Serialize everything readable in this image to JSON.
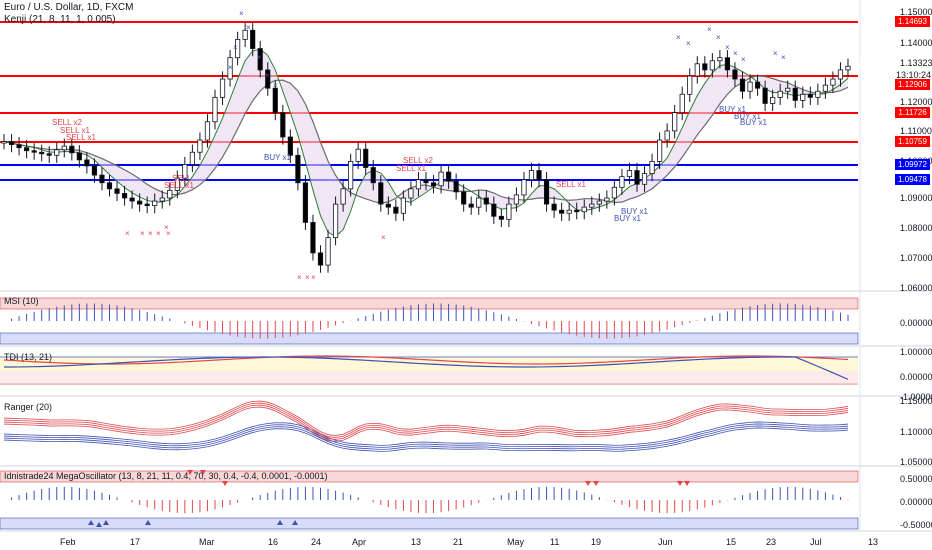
{
  "header": {
    "symbol_title": "Euro / U.S. Dollar, 1D, FXCM",
    "indicator": "Kenji (21, 8, 11, 1, 0.005)"
  },
  "price_axis": {
    "ticks": [
      "1.15000",
      "1.14000",
      "1.13323",
      "1.12000",
      "1.11000",
      "1.10000",
      "1.09000",
      "1.08000",
      "1.07000",
      "1.06000"
    ],
    "current_price": "1.13323",
    "countdown": "13:10:24"
  },
  "levels": [
    {
      "value": "1.14693",
      "color": "#ff0000"
    },
    {
      "value": "1.12906",
      "color": "#ff0000"
    },
    {
      "value": "1.11726",
      "color": "#ff0000"
    },
    {
      "value": "1.10759",
      "color": "#ff0000"
    },
    {
      "value": "1.09972",
      "color": "#0000ff"
    },
    {
      "value": "1.09478",
      "color": "#0000ff"
    }
  ],
  "signals": [
    "SELL x2",
    "SELL x1",
    "SELL x1",
    "SELL",
    "SELL x1",
    "BUY x1",
    "SELL x2",
    "SELL x1",
    "SELL x1",
    "BUY x1",
    "BUY x1",
    "BUY x1",
    "BUY x1",
    "BUY x1"
  ],
  "panes": {
    "msi": {
      "title": "MSI (10)",
      "ticks": [
        "0.00000"
      ]
    },
    "tdi": {
      "title": "TDI (13, 21)",
      "ticks": [
        "1.00000",
        "0.00000",
        "-1.00000"
      ]
    },
    "ranger": {
      "title": "Ranger (20)",
      "ticks": [
        "1.15000",
        "1.10000",
        "1.05000"
      ]
    },
    "mega": {
      "title": "Idnistrade24 MegaOscillator (13, 8, 21, 11, 0.4, 70, 30, 0.4, -0.4, 0.0001, -0.0001)",
      "ticks": [
        "0.50000",
        "0.00000",
        "-0.50000"
      ]
    }
  },
  "time_axis": [
    "Feb",
    "17",
    "Mar",
    "16",
    "24",
    "Apr",
    "13",
    "21",
    "May",
    "11",
    "19",
    "Jun",
    "15",
    "23",
    "Jul",
    "13"
  ],
  "colors": {
    "bull": "#ffffff",
    "bear": "#000000",
    "sell_signal": "#e0474c",
    "buy_signal": "#3f51b5",
    "accent_red": "#ff0000",
    "accent_blue": "#0000ff"
  }
}
